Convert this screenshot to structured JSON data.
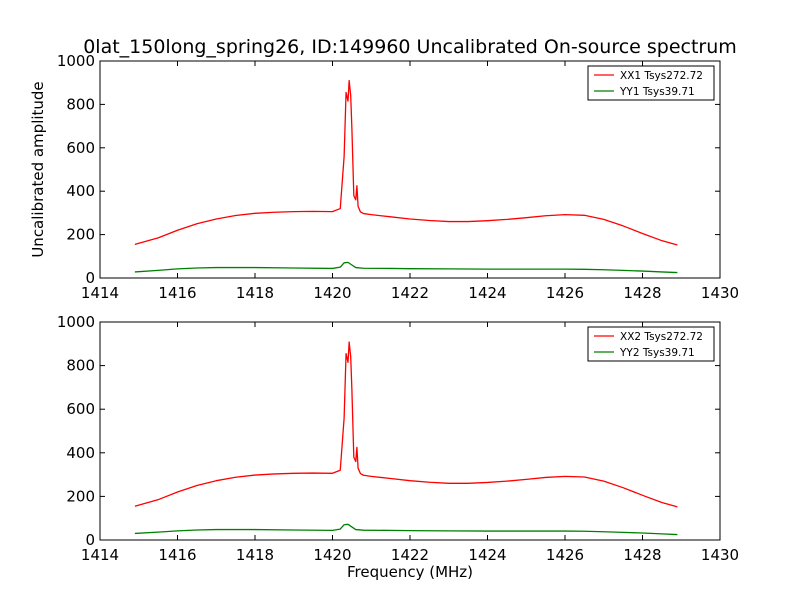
{
  "title": "0lat_150long_spring26, ID:149960 Uncalibrated On-source spectrum",
  "chart_data": [
    {
      "type": "line",
      "title": "0lat_150long_spring26, ID:149960 Uncalibrated On-source spectrum",
      "xlabel": "",
      "ylabel": "Uncalibrated amplitude",
      "xlim": [
        1414,
        1430
      ],
      "ylim": [
        0,
        1000
      ],
      "xticks": [
        "1414",
        "1416",
        "1418",
        "1420",
        "1422",
        "1424",
        "1426",
        "1428",
        "1430"
      ],
      "yticks": [
        "0",
        "200",
        "400",
        "600",
        "800",
        "1000"
      ],
      "grid": false,
      "legend_position": "top-right",
      "series": [
        {
          "name": "XX1 Tsys272.72",
          "color": "#ff0000",
          "x": [
            1414.9,
            1415.5,
            1416.0,
            1416.5,
            1417.0,
            1417.5,
            1418.0,
            1418.5,
            1419.0,
            1419.5,
            1420.0,
            1420.2,
            1420.3,
            1420.35,
            1420.4,
            1420.43,
            1420.47,
            1420.5,
            1420.55,
            1420.6,
            1420.63,
            1420.66,
            1420.72,
            1420.8,
            1421.0,
            1421.5,
            1422.0,
            1422.5,
            1423.0,
            1423.5,
            1424.0,
            1424.5,
            1425.0,
            1425.5,
            1426.0,
            1426.5,
            1427.0,
            1427.5,
            1428.0,
            1428.5,
            1428.9
          ],
          "y": [
            155,
            185,
            220,
            250,
            272,
            288,
            298,
            303,
            306,
            307,
            306,
            320,
            560,
            855,
            815,
            910,
            840,
            690,
            380,
            360,
            425,
            330,
            305,
            297,
            292,
            282,
            272,
            265,
            260,
            260,
            264,
            270,
            278,
            287,
            292,
            289,
            270,
            240,
            205,
            172,
            152
          ]
        },
        {
          "name": "YY1 Tsys39.71",
          "color": "#008000",
          "x": [
            1414.9,
            1415.5,
            1416.0,
            1416.5,
            1417.0,
            1418.0,
            1419.0,
            1420.0,
            1420.2,
            1420.3,
            1420.4,
            1420.5,
            1420.6,
            1420.8,
            1421.5,
            1422.0,
            1423.0,
            1424.0,
            1425.0,
            1426.0,
            1426.5,
            1427.0,
            1427.5,
            1428.0,
            1428.5,
            1428.9
          ],
          "y": [
            28,
            35,
            42,
            46,
            48,
            48,
            46,
            44,
            50,
            70,
            72,
            60,
            48,
            45,
            44,
            43,
            42,
            41,
            41,
            41,
            40,
            38,
            35,
            32,
            28,
            25
          ]
        }
      ]
    },
    {
      "type": "line",
      "title": "",
      "xlabel": "Frequency (MHz)",
      "ylabel": "",
      "xlim": [
        1414,
        1430
      ],
      "ylim": [
        0,
        1000
      ],
      "xticks": [
        "1414",
        "1416",
        "1418",
        "1420",
        "1422",
        "1424",
        "1426",
        "1428",
        "1430"
      ],
      "yticks": [
        "0",
        "200",
        "400",
        "600",
        "800",
        "1000"
      ],
      "grid": false,
      "legend_position": "top-right",
      "series": [
        {
          "name": "XX2 Tsys272.72",
          "color": "#ff0000",
          "x": [
            1414.9,
            1415.5,
            1416.0,
            1416.5,
            1417.0,
            1417.5,
            1418.0,
            1418.5,
            1419.0,
            1419.5,
            1420.0,
            1420.2,
            1420.3,
            1420.35,
            1420.4,
            1420.43,
            1420.47,
            1420.5,
            1420.55,
            1420.6,
            1420.63,
            1420.66,
            1420.72,
            1420.8,
            1421.0,
            1421.5,
            1422.0,
            1422.5,
            1423.0,
            1423.5,
            1424.0,
            1424.5,
            1425.0,
            1425.5,
            1426.0,
            1426.5,
            1427.0,
            1427.5,
            1428.0,
            1428.5,
            1428.9
          ],
          "y": [
            155,
            185,
            220,
            250,
            272,
            288,
            298,
            303,
            306,
            307,
            306,
            320,
            560,
            855,
            815,
            908,
            840,
            690,
            380,
            360,
            425,
            330,
            305,
            297,
            292,
            282,
            272,
            265,
            260,
            260,
            264,
            270,
            278,
            287,
            292,
            289,
            270,
            240,
            205,
            172,
            152
          ]
        },
        {
          "name": "YY2 Tsys39.71",
          "color": "#008000",
          "x": [
            1414.9,
            1415.5,
            1416.0,
            1416.5,
            1417.0,
            1418.0,
            1419.0,
            1420.0,
            1420.2,
            1420.3,
            1420.4,
            1420.5,
            1420.6,
            1420.8,
            1421.5,
            1422.0,
            1423.0,
            1424.0,
            1425.0,
            1426.0,
            1426.5,
            1427.0,
            1427.5,
            1428.0,
            1428.5,
            1428.9
          ],
          "y": [
            30,
            36,
            42,
            46,
            48,
            48,
            46,
            44,
            50,
            70,
            72,
            60,
            48,
            45,
            44,
            43,
            42,
            41,
            41,
            41,
            40,
            38,
            35,
            32,
            28,
            25
          ]
        }
      ]
    }
  ]
}
